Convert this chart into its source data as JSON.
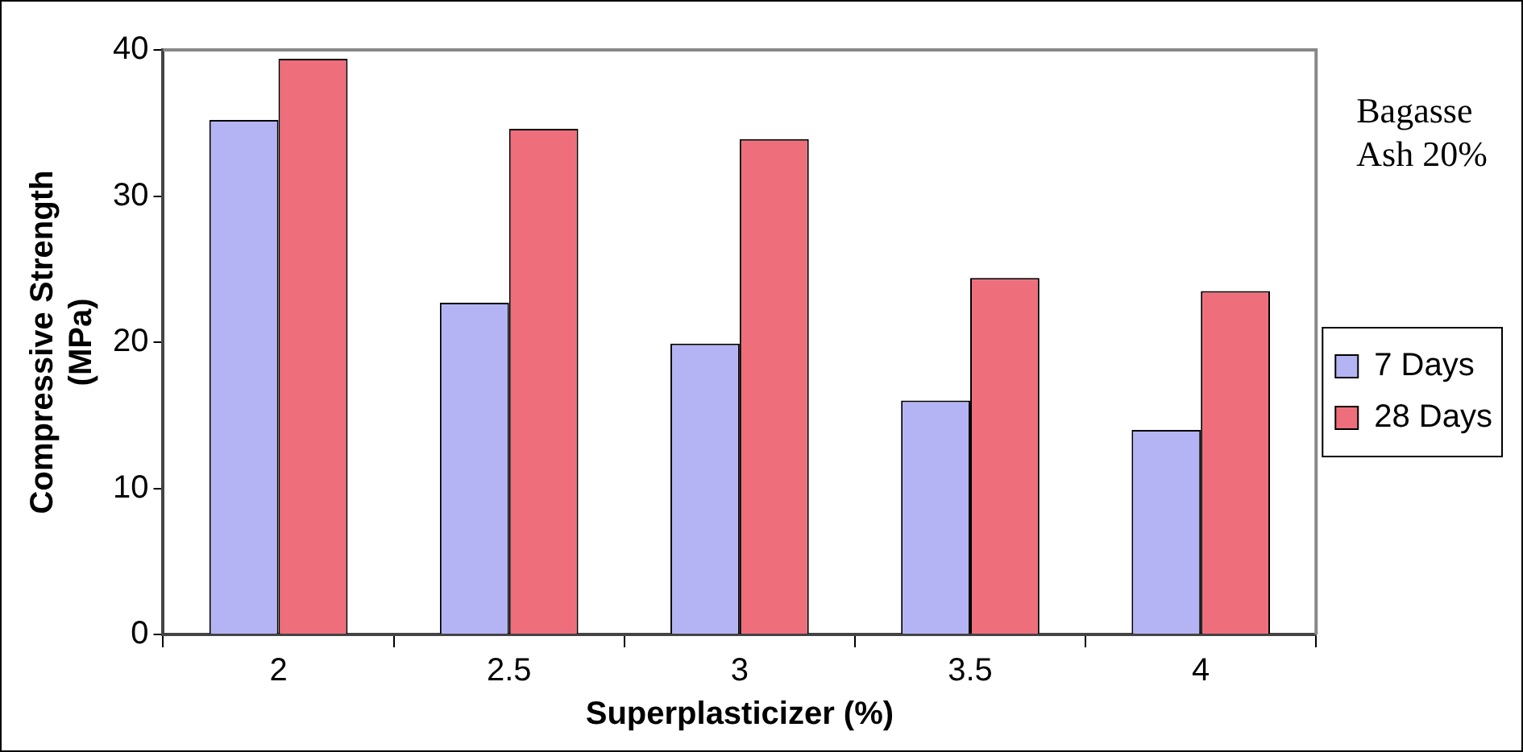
{
  "chart_data": {
    "type": "bar",
    "categories": [
      "2",
      "2.5",
      "3",
      "3.5",
      "4"
    ],
    "series": [
      {
        "name": "7 Days",
        "color": "#b4b4f4",
        "values": [
          35.2,
          22.7,
          19.9,
          16.0,
          14.0
        ]
      },
      {
        "name": "28 Days",
        "color": "#ee6e7c",
        "values": [
          39.4,
          34.6,
          33.9,
          24.4,
          23.5
        ]
      }
    ],
    "xlabel": "Superplasticizer (%)",
    "ylabel": "Compressive Strength (MPa)",
    "ylim": [
      0,
      40
    ],
    "yticks": [
      0,
      10,
      20,
      30,
      40
    ],
    "annotations": [
      "Bagasse Ash 20%"
    ],
    "grid": false,
    "legend": "right"
  }
}
